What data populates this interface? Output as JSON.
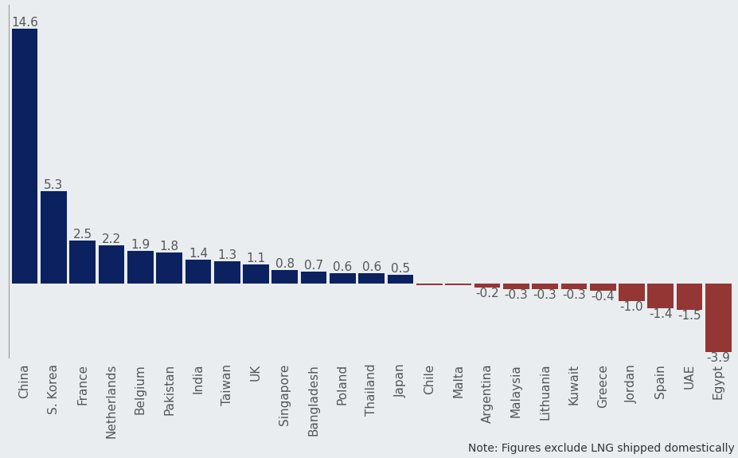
{
  "chart_data": {
    "type": "bar",
    "categories": [
      "China",
      "S. Korea",
      "France",
      "Netherlands",
      "Belgium",
      "Pakistan",
      "India",
      "Taiwan",
      "UK",
      "Singapore",
      "Bangladesh",
      "Poland",
      "Thailand",
      "Japan",
      "Chile",
      "Malta",
      "Argentina",
      "Malaysia",
      "Lithuania",
      "Kuwait",
      "Greece",
      "Jordan",
      "Spain",
      "UAE",
      "Egypt"
    ],
    "values": [
      14.6,
      5.3,
      2.5,
      2.2,
      1.9,
      1.8,
      1.4,
      1.3,
      1.1,
      0.8,
      0.7,
      0.6,
      0.6,
      0.5,
      -0.05,
      -0.05,
      -0.2,
      -0.3,
      -0.3,
      -0.3,
      -0.4,
      -1.0,
      -1.4,
      -1.5,
      -3.9
    ],
    "value_labels": [
      "14.6",
      "5.3",
      "2.5",
      "2.2",
      "1.9",
      "1.8",
      "1.4",
      "1.3",
      "1.1",
      "0.8",
      "0.7",
      "0.6",
      "0.6",
      "0.5",
      null,
      null,
      "-0.2",
      "-0.3",
      "-0.3",
      "-0.3",
      "-0.4",
      "-1.0",
      "-1.4",
      "-1.5",
      "-3.9"
    ],
    "colors": [
      "#0b2160",
      "#0b2160",
      "#0b2160",
      "#0b2160",
      "#0b2160",
      "#0b2160",
      "#0b2160",
      "#0b2160",
      "#0b2160",
      "#0b2160",
      "#0b2160",
      "#0b2160",
      "#0b2160",
      "#0b2160",
      "#943634",
      "#943634",
      "#943634",
      "#943634",
      "#943634",
      "#943634",
      "#943634",
      "#943634",
      "#943634",
      "#943634",
      "#943634"
    ],
    "ylim": [
      -4.2,
      16
    ],
    "yticks": [],
    "tick_labels": "x",
    "data_labels": true,
    "grid": false,
    "annotations": [
      "Note: Figures exclude LNG shipped domestically"
    ]
  }
}
